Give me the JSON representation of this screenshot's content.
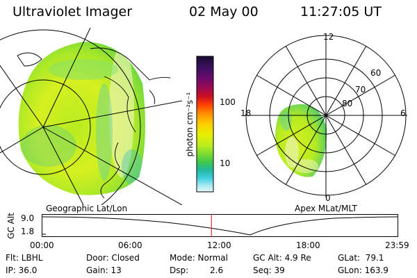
{
  "header": {
    "instrument": "Ultraviolet Imager",
    "date": "02 May 00",
    "time": "11:27:05 UT"
  },
  "geo_panel": {
    "label": "Geographic Lat/Lon"
  },
  "apex_panel": {
    "label": "Apex MLat/MLT",
    "mlt_labels": [
      "12",
      "18",
      "6",
      "0"
    ],
    "lat_labels": [
      "60",
      "70",
      "80"
    ]
  },
  "colorbar": {
    "unit_label": "photon cm⁻²s⁻¹",
    "ticks": [
      "100",
      "10"
    ],
    "colors": [
      "#1a0a30",
      "#3a1060",
      "#6a0a6a",
      "#a00a50",
      "#d01020",
      "#ff4400",
      "#ff8c00",
      "#ffd000",
      "#e6f000",
      "#b8ec20",
      "#7ddc30",
      "#40c84a",
      "#20b8a0",
      "#40d0e0",
      "#a0e8f0",
      "#e8f8fa"
    ]
  },
  "altitude_plot": {
    "ylabel": "GC Alt",
    "yticks": [
      "9.0",
      "1.8"
    ],
    "xticks": [
      "00:00",
      "06:00",
      "12:00",
      "18:00",
      "23:59"
    ],
    "marker_time_hours": 11.45,
    "marker_color": "#ff0000"
  },
  "footer": {
    "row1": {
      "filter": "Flt: LBHL",
      "door": "Door: Closed",
      "mode": "Mode: Normal",
      "gc_alt": "GC Alt: 4.9 Re",
      "glat": "GLat:  79.1"
    },
    "row2": {
      "ip": "IP: 36.0",
      "gain": "Gain: 13",
      "dsp_label": "Dsp:",
      "dsp_value": "2.6",
      "seq": "Seq: 39",
      "glon": "GLon: 163.9"
    }
  }
}
